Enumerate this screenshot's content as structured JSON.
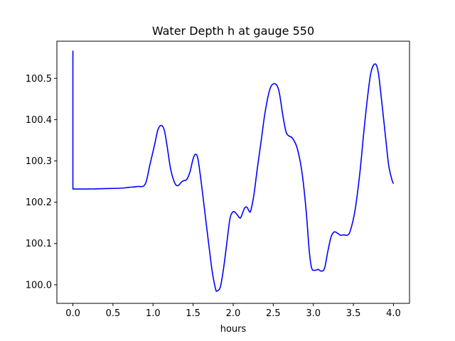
{
  "chart_data": {
    "type": "line",
    "title": "Water Depth h at gauge 550",
    "xlabel": "hours",
    "ylabel": "",
    "xlim": [
      -0.2,
      4.2
    ],
    "ylim": [
      99.955,
      100.59
    ],
    "x_ticks": [
      0.0,
      0.5,
      1.0,
      1.5,
      2.0,
      2.5,
      3.0,
      3.5,
      4.0
    ],
    "x_tick_labels": [
      "0.0",
      "0.5",
      "1.0",
      "1.5",
      "2.0",
      "2.5",
      "3.0",
      "3.5",
      "4.0"
    ],
    "y_ticks": [
      100.0,
      100.1,
      100.2,
      100.3,
      100.4,
      100.5
    ],
    "y_tick_labels": [
      "100.0",
      "100.1",
      "100.2",
      "100.3",
      "100.4",
      "100.5"
    ],
    "grid": false,
    "series": [
      {
        "color": "#0000ff",
        "points": [
          [
            0.0,
            100.567
          ],
          [
            0.0,
            100.232
          ],
          [
            0.2,
            100.232
          ],
          [
            0.4,
            100.233
          ],
          [
            0.6,
            100.234
          ],
          [
            0.7,
            100.236
          ],
          [
            0.8,
            100.238
          ],
          [
            0.9,
            100.243
          ],
          [
            0.96,
            100.29
          ],
          [
            1.02,
            100.34
          ],
          [
            1.06,
            100.375
          ],
          [
            1.1,
            100.386
          ],
          [
            1.14,
            100.375
          ],
          [
            1.18,
            100.33
          ],
          [
            1.22,
            100.28
          ],
          [
            1.27,
            100.247
          ],
          [
            1.31,
            100.24
          ],
          [
            1.35,
            100.248
          ],
          [
            1.38,
            100.252
          ],
          [
            1.42,
            100.255
          ],
          [
            1.46,
            100.273
          ],
          [
            1.5,
            100.305
          ],
          [
            1.53,
            100.316
          ],
          [
            1.56,
            100.305
          ],
          [
            1.6,
            100.25
          ],
          [
            1.65,
            100.17
          ],
          [
            1.7,
            100.09
          ],
          [
            1.74,
            100.03
          ],
          [
            1.78,
            99.99
          ],
          [
            1.8,
            99.985
          ],
          [
            1.84,
            99.995
          ],
          [
            1.88,
            100.04
          ],
          [
            1.92,
            100.1
          ],
          [
            1.96,
            100.16
          ],
          [
            2.0,
            100.177
          ],
          [
            2.04,
            100.172
          ],
          [
            2.08,
            100.162
          ],
          [
            2.1,
            100.165
          ],
          [
            2.14,
            100.185
          ],
          [
            2.17,
            100.188
          ],
          [
            2.2,
            100.178
          ],
          [
            2.22,
            100.18
          ],
          [
            2.26,
            100.22
          ],
          [
            2.3,
            100.28
          ],
          [
            2.35,
            100.35
          ],
          [
            2.4,
            100.42
          ],
          [
            2.46,
            100.475
          ],
          [
            2.52,
            100.487
          ],
          [
            2.57,
            100.47
          ],
          [
            2.62,
            100.41
          ],
          [
            2.66,
            100.37
          ],
          [
            2.7,
            100.36
          ],
          [
            2.74,
            100.355
          ],
          [
            2.8,
            100.33
          ],
          [
            2.86,
            100.27
          ],
          [
            2.91,
            100.18
          ],
          [
            2.95,
            100.08
          ],
          [
            2.98,
            100.04
          ],
          [
            3.02,
            100.035
          ],
          [
            3.06,
            100.037
          ],
          [
            3.1,
            100.033
          ],
          [
            3.14,
            100.04
          ],
          [
            3.18,
            100.08
          ],
          [
            3.22,
            100.115
          ],
          [
            3.26,
            100.128
          ],
          [
            3.3,
            100.125
          ],
          [
            3.34,
            100.12
          ],
          [
            3.38,
            100.121
          ],
          [
            3.42,
            100.12
          ],
          [
            3.46,
            100.13
          ],
          [
            3.52,
            100.18
          ],
          [
            3.58,
            100.27
          ],
          [
            3.63,
            100.37
          ],
          [
            3.68,
            100.46
          ],
          [
            3.72,
            100.515
          ],
          [
            3.77,
            100.535
          ],
          [
            3.81,
            100.515
          ],
          [
            3.85,
            100.45
          ],
          [
            3.9,
            100.36
          ],
          [
            3.94,
            100.29
          ],
          [
            3.98,
            100.255
          ],
          [
            4.0,
            100.245
          ]
        ]
      }
    ]
  }
}
